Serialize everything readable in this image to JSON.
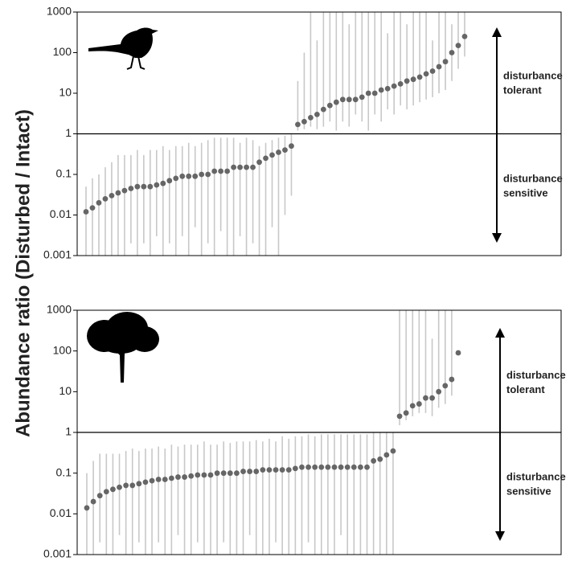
{
  "chart_data": [
    {
      "type": "errorbar",
      "ylabel": "Abundance ratio (Disturbed / Intact)",
      "log_y": true,
      "ylim": [
        0.001,
        1000
      ],
      "yticks": [
        0.001,
        0.01,
        0.1,
        1,
        10,
        100,
        1000
      ],
      "annotation_top": "disturbance tolerant",
      "annotation_bottom": "disturbance sensitive",
      "point_color": "#666666",
      "bar_color": "#c8c8c8",
      "values": [
        0.012,
        0.015,
        0.02,
        0.025,
        0.03,
        0.035,
        0.04,
        0.045,
        0.05,
        0.05,
        0.05,
        0.055,
        0.06,
        0.07,
        0.08,
        0.09,
        0.09,
        0.09,
        0.1,
        0.1,
        0.12,
        0.12,
        0.12,
        0.15,
        0.15,
        0.15,
        0.15,
        0.2,
        0.25,
        0.3,
        0.35,
        0.4,
        0.5,
        1.7,
        2,
        2.5,
        3,
        4,
        5,
        6,
        7,
        7,
        7,
        8,
        10,
        10,
        12,
        13,
        15,
        17,
        20,
        22,
        25,
        30,
        35,
        45,
        60,
        100,
        150,
        250
      ],
      "lower": [
        0.001,
        0.001,
        0.001,
        0.001,
        0.001,
        0.001,
        0.001,
        0.002,
        0.001,
        0.002,
        0.001,
        0.003,
        0.001,
        0.002,
        0.001,
        0.003,
        0.001,
        0.005,
        0.001,
        0.002,
        0.001,
        0.004,
        0.001,
        0.001,
        0.003,
        0.001,
        0.002,
        0.001,
        0.001,
        0.005,
        0.001,
        0.01,
        0.03,
        1.2,
        1.3,
        1.5,
        1.3,
        1.5,
        2,
        1.2,
        2,
        1.5,
        3,
        2,
        1.2,
        3,
        2,
        4,
        3,
        5,
        4,
        5,
        6,
        7,
        8,
        10,
        12,
        20,
        40,
        80
      ],
      "upper": [
        0.05,
        0.08,
        0.1,
        0.15,
        0.2,
        0.3,
        0.3,
        0.3,
        0.4,
        0.3,
        0.4,
        0.4,
        0.5,
        0.4,
        0.5,
        0.5,
        0.6,
        0.5,
        0.6,
        0.7,
        0.8,
        0.8,
        0.8,
        0.8,
        0.6,
        0.8,
        0.7,
        0.5,
        0.6,
        0.7,
        0.8,
        0.9,
        1,
        20,
        100,
        1000,
        200,
        1000,
        1000,
        1000,
        1000,
        500,
        1000,
        1000,
        1000,
        1000,
        1000,
        300,
        1000,
        1000,
        500,
        1000,
        1000,
        1000,
        200,
        1000,
        1000,
        500,
        1000,
        1000
      ]
    },
    {
      "type": "errorbar",
      "log_y": true,
      "ylim": [
        0.001,
        1000
      ],
      "yticks": [
        0.001,
        0.01,
        0.1,
        1,
        10,
        100,
        1000
      ],
      "annotation_top": "disturbance tolerant",
      "annotation_bottom": "disturbance sensitive",
      "point_color": "#666666",
      "bar_color": "#c8c8c8",
      "values": [
        0.014,
        0.02,
        0.028,
        0.035,
        0.04,
        0.045,
        0.05,
        0.05,
        0.055,
        0.06,
        0.065,
        0.07,
        0.07,
        0.075,
        0.08,
        0.08,
        0.085,
        0.09,
        0.09,
        0.09,
        0.1,
        0.1,
        0.1,
        0.1,
        0.11,
        0.11,
        0.11,
        0.12,
        0.12,
        0.12,
        0.12,
        0.12,
        0.13,
        0.14,
        0.14,
        0.14,
        0.14,
        0.14,
        0.14,
        0.14,
        0.14,
        0.14,
        0.14,
        0.14,
        0.2,
        0.22,
        0.28,
        0.35,
        2.5,
        3,
        4.5,
        5,
        7,
        7,
        10,
        14,
        20,
        90
      ],
      "lower": [
        0.001,
        0.001,
        0.002,
        0.001,
        0.001,
        0.003,
        0.001,
        0.001,
        0.002,
        0.001,
        0.001,
        0.002,
        0.001,
        0.001,
        0.003,
        0.001,
        0.001,
        0.002,
        0.001,
        0.001,
        0.001,
        0.002,
        0.001,
        0.001,
        0.001,
        0.003,
        0.001,
        0.001,
        0.001,
        0.002,
        0.001,
        0.001,
        0.001,
        0.001,
        0.002,
        0.001,
        0.001,
        0.001,
        0.001,
        0.003,
        0.001,
        0.001,
        0.001,
        0.001,
        0.001,
        0.001,
        0.001,
        0.001,
        1.5,
        2,
        2.5,
        3,
        3,
        2.5,
        4,
        5,
        8,
        90
      ],
      "upper": [
        0.1,
        0.2,
        0.3,
        0.3,
        0.3,
        0.3,
        0.35,
        0.4,
        0.35,
        0.4,
        0.4,
        0.45,
        0.4,
        0.5,
        0.45,
        0.5,
        0.5,
        0.5,
        0.6,
        0.5,
        0.5,
        0.6,
        0.55,
        0.6,
        0.6,
        0.6,
        0.65,
        0.6,
        0.7,
        0.6,
        0.8,
        0.7,
        0.8,
        0.8,
        0.9,
        0.8,
        0.9,
        0.9,
        0.9,
        0.9,
        0.9,
        0.9,
        0.9,
        0.9,
        1,
        1,
        1,
        1,
        1000,
        1000,
        1000,
        1000,
        1000,
        200,
        1000,
        1000,
        1000,
        90
      ]
    }
  ]
}
